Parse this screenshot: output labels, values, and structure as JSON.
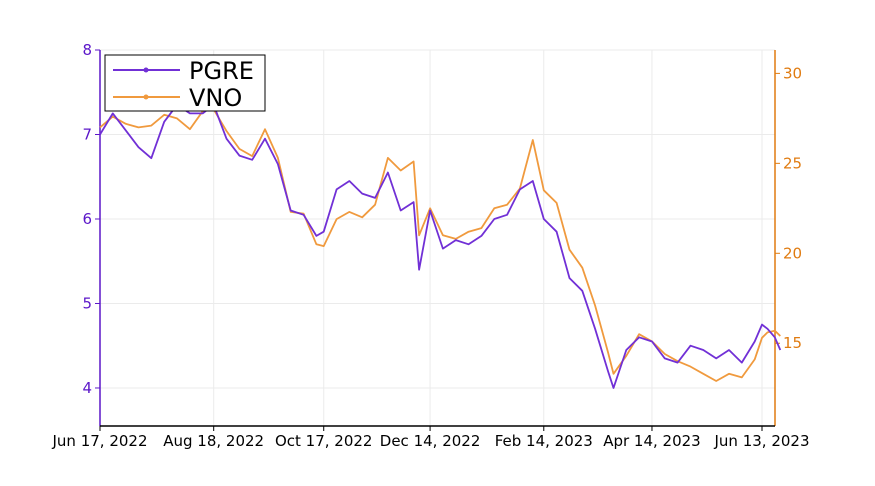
{
  "chart_data": {
    "type": "line",
    "title": "",
    "xlabel": "",
    "ylabel": "",
    "x_tick_labels": [
      "Jun 17, 2022",
      "Aug 18, 2022",
      "Oct 17, 2022",
      "Dec 14, 2022",
      "Feb 14, 2023",
      "Apr 14, 2023",
      "Jun 13, 2023"
    ],
    "y_left": {
      "ticks": [
        "4",
        "5",
        "6",
        "7",
        "8"
      ],
      "range": [
        3.55,
        8.0
      ],
      "color": "#5b16c9"
    },
    "y_right": {
      "ticks": [
        "15",
        "20",
        "25",
        "30"
      ],
      "range": [
        10.4,
        31.3
      ],
      "color": "#e07b10"
    },
    "grid": true,
    "legend": {
      "position": "top-left",
      "entries": [
        "PGRE",
        "VNO"
      ]
    },
    "series": [
      {
        "name": "PGRE",
        "axis": "left",
        "color": "#7130d6",
        "points": [
          [
            "2022-06-17",
            7.0
          ],
          [
            "2022-06-24",
            7.25
          ],
          [
            "2022-07-01",
            7.05
          ],
          [
            "2022-07-08",
            6.85
          ],
          [
            "2022-07-15",
            6.72
          ],
          [
            "2022-07-22",
            7.15
          ],
          [
            "2022-07-29",
            7.35
          ],
          [
            "2022-08-05",
            7.25
          ],
          [
            "2022-08-12",
            7.25
          ],
          [
            "2022-08-18",
            7.35
          ],
          [
            "2022-08-25",
            6.95
          ],
          [
            "2022-09-01",
            6.75
          ],
          [
            "2022-09-08",
            6.7
          ],
          [
            "2022-09-15",
            6.95
          ],
          [
            "2022-09-22",
            6.65
          ],
          [
            "2022-09-29",
            6.1
          ],
          [
            "2022-10-06",
            6.05
          ],
          [
            "2022-10-13",
            5.8
          ],
          [
            "2022-10-17",
            5.85
          ],
          [
            "2022-10-24",
            6.35
          ],
          [
            "2022-10-31",
            6.45
          ],
          [
            "2022-11-07",
            6.3
          ],
          [
            "2022-11-14",
            6.25
          ],
          [
            "2022-11-21",
            6.55
          ],
          [
            "2022-11-28",
            6.1
          ],
          [
            "2022-12-05",
            6.2
          ],
          [
            "2022-12-08",
            5.4
          ],
          [
            "2022-12-14",
            6.1
          ],
          [
            "2022-12-21",
            5.65
          ],
          [
            "2022-12-28",
            5.75
          ],
          [
            "2023-01-04",
            5.7
          ],
          [
            "2023-01-11",
            5.8
          ],
          [
            "2023-01-18",
            6.0
          ],
          [
            "2023-01-25",
            6.05
          ],
          [
            "2023-02-01",
            6.35
          ],
          [
            "2023-02-08",
            6.45
          ],
          [
            "2023-02-14",
            6.0
          ],
          [
            "2023-02-21",
            5.85
          ],
          [
            "2023-02-28",
            5.3
          ],
          [
            "2023-03-07",
            5.15
          ],
          [
            "2023-03-14",
            4.7
          ],
          [
            "2023-03-21",
            4.2
          ],
          [
            "2023-03-24",
            4.0
          ],
          [
            "2023-03-31",
            4.45
          ],
          [
            "2023-04-07",
            4.6
          ],
          [
            "2023-04-14",
            4.55
          ],
          [
            "2023-04-21",
            4.35
          ],
          [
            "2023-04-28",
            4.3
          ],
          [
            "2023-05-05",
            4.5
          ],
          [
            "2023-05-12",
            4.45
          ],
          [
            "2023-05-19",
            4.35
          ],
          [
            "2023-05-26",
            4.45
          ],
          [
            "2023-06-02",
            4.3
          ],
          [
            "2023-06-09",
            4.55
          ],
          [
            "2023-06-13",
            4.75
          ],
          [
            "2023-06-16",
            4.7
          ],
          [
            "2023-06-20",
            4.6
          ],
          [
            "2023-06-23",
            4.45
          ]
        ]
      },
      {
        "name": "VNO",
        "axis": "right",
        "color": "#f09a3e",
        "points": [
          [
            "2022-06-17",
            27.0
          ],
          [
            "2022-06-24",
            27.6
          ],
          [
            "2022-07-01",
            27.2
          ],
          [
            "2022-07-08",
            27.0
          ],
          [
            "2022-07-15",
            27.1
          ],
          [
            "2022-07-22",
            27.7
          ],
          [
            "2022-07-29",
            27.5
          ],
          [
            "2022-08-05",
            26.9
          ],
          [
            "2022-08-12",
            27.9
          ],
          [
            "2022-08-18",
            28.0
          ],
          [
            "2022-08-25",
            26.8
          ],
          [
            "2022-09-01",
            25.8
          ],
          [
            "2022-09-08",
            25.4
          ],
          [
            "2022-09-15",
            26.9
          ],
          [
            "2022-09-22",
            25.3
          ],
          [
            "2022-09-29",
            22.3
          ],
          [
            "2022-10-06",
            22.2
          ],
          [
            "2022-10-13",
            20.5
          ],
          [
            "2022-10-17",
            20.4
          ],
          [
            "2022-10-24",
            21.9
          ],
          [
            "2022-10-31",
            22.3
          ],
          [
            "2022-11-07",
            22.0
          ],
          [
            "2022-11-14",
            22.7
          ],
          [
            "2022-11-21",
            25.3
          ],
          [
            "2022-11-28",
            24.6
          ],
          [
            "2022-12-05",
            25.1
          ],
          [
            "2022-12-08",
            21.0
          ],
          [
            "2022-12-14",
            22.5
          ],
          [
            "2022-12-21",
            21.0
          ],
          [
            "2022-12-28",
            20.8
          ],
          [
            "2023-01-04",
            21.2
          ],
          [
            "2023-01-11",
            21.4
          ],
          [
            "2023-01-18",
            22.5
          ],
          [
            "2023-01-25",
            22.7
          ],
          [
            "2023-02-01",
            23.6
          ],
          [
            "2023-02-08",
            26.3
          ],
          [
            "2023-02-14",
            23.5
          ],
          [
            "2023-02-21",
            22.8
          ],
          [
            "2023-02-28",
            20.2
          ],
          [
            "2023-03-07",
            19.2
          ],
          [
            "2023-03-14",
            17.1
          ],
          [
            "2023-03-21",
            14.5
          ],
          [
            "2023-03-24",
            13.3
          ],
          [
            "2023-03-31",
            14.3
          ],
          [
            "2023-04-07",
            15.5
          ],
          [
            "2023-04-14",
            15.1
          ],
          [
            "2023-04-21",
            14.4
          ],
          [
            "2023-04-28",
            14.0
          ],
          [
            "2023-05-05",
            13.7
          ],
          [
            "2023-05-12",
            13.3
          ],
          [
            "2023-05-19",
            12.9
          ],
          [
            "2023-05-26",
            13.3
          ],
          [
            "2023-06-02",
            13.1
          ],
          [
            "2023-06-09",
            14.1
          ],
          [
            "2023-06-13",
            15.3
          ],
          [
            "2023-06-16",
            15.6
          ],
          [
            "2023-06-20",
            15.7
          ],
          [
            "2023-06-23",
            15.4
          ]
        ]
      }
    ]
  }
}
